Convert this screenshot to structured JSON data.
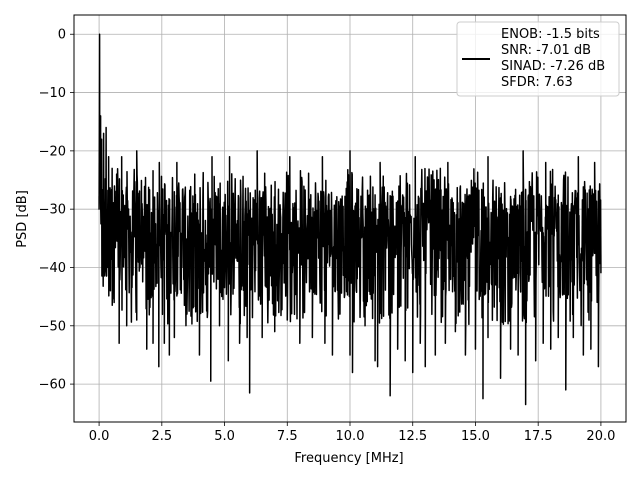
{
  "chart_data": {
    "type": "line",
    "title": "",
    "xlabel": "Frequency [MHz]",
    "ylabel": "PSD [dB]",
    "xlim": [
      -1.0,
      21.0
    ],
    "ylim": [
      -66.5,
      3.3
    ],
    "x_ticks": [
      0.0,
      2.5,
      5.0,
      7.5,
      10.0,
      12.5,
      15.0,
      17.5,
      20.0
    ],
    "x_tick_labels": [
      "0.0",
      "2.5",
      "5.0",
      "7.5",
      "10.0",
      "12.5",
      "15.0",
      "17.5",
      "20.0"
    ],
    "y_ticks": [
      0,
      -10,
      -20,
      -30,
      -40,
      -50,
      -60
    ],
    "y_tick_labels": [
      "0",
      "−10",
      "−20",
      "−30",
      "−40",
      "−50",
      "−60"
    ],
    "grid": true,
    "legend": {
      "placement": "top-right",
      "lines": [
        "ENOB: -1.5 bits",
        "SNR: -7.01 dB",
        "SINAD: -7.26 dB",
        "SFDR: 7.63"
      ]
    },
    "series": [
      {
        "color": "#000000",
        "noise_floor_db": -33,
        "noise_spread_db": [
          -45,
          -23
        ],
        "x_range": [
          0.0,
          20.0
        ],
        "points": [
          [
            0.0,
            -30
          ],
          [
            0.02,
            0.0
          ],
          [
            0.04,
            -20
          ],
          [
            0.06,
            -14
          ],
          [
            0.08,
            -26
          ],
          [
            0.1,
            -18
          ],
          [
            0.14,
            -36
          ],
          [
            0.18,
            -17
          ],
          [
            0.22,
            -34
          ],
          [
            0.28,
            -16
          ],
          [
            0.33,
            -40
          ],
          [
            0.38,
            -21
          ],
          [
            0.45,
            -44
          ],
          [
            0.52,
            -23
          ],
          [
            0.6,
            -46
          ],
          [
            0.7,
            -24
          ],
          [
            0.8,
            -53
          ],
          [
            1.1,
            -50
          ],
          [
            1.5,
            -49
          ],
          [
            1.9,
            -54
          ],
          [
            2.0,
            -48
          ],
          [
            2.15,
            -53
          ],
          [
            2.38,
            -57
          ],
          [
            2.6,
            -53
          ],
          [
            2.8,
            -55
          ],
          [
            3.0,
            -52
          ],
          [
            3.5,
            -48
          ],
          [
            4.0,
            -55
          ],
          [
            4.45,
            -59.5
          ],
          [
            4.8,
            -50
          ],
          [
            5.15,
            -56
          ],
          [
            5.6,
            -53
          ],
          [
            5.9,
            -52
          ],
          [
            6.0,
            -61.5
          ],
          [
            6.5,
            -52
          ],
          [
            7.0,
            -51
          ],
          [
            7.5,
            -49
          ],
          [
            8.0,
            -53
          ],
          [
            8.5,
            -52
          ],
          [
            9.0,
            -53
          ],
          [
            9.3,
            -55
          ],
          [
            9.6,
            -48
          ],
          [
            10.0,
            -55
          ],
          [
            10.1,
            -58
          ],
          [
            10.6,
            -50
          ],
          [
            11.0,
            -56
          ],
          [
            11.1,
            -57
          ],
          [
            11.6,
            -62
          ],
          [
            11.9,
            -54
          ],
          [
            12.2,
            -56
          ],
          [
            12.5,
            -58
          ],
          [
            12.8,
            -53
          ],
          [
            13.0,
            -57
          ],
          [
            13.4,
            -55
          ],
          [
            13.8,
            -53
          ],
          [
            14.2,
            -51
          ],
          [
            14.6,
            -55
          ],
          [
            15.0,
            -54
          ],
          [
            15.3,
            -62.5
          ],
          [
            15.5,
            -52
          ],
          [
            16.0,
            -59
          ],
          [
            16.4,
            -54
          ],
          [
            16.7,
            -55
          ],
          [
            17.0,
            -63.5
          ],
          [
            17.4,
            -56
          ],
          [
            17.7,
            -53
          ],
          [
            18.0,
            -54
          ],
          [
            18.3,
            -52
          ],
          [
            18.6,
            -61
          ],
          [
            18.9,
            -52
          ],
          [
            19.3,
            -55
          ],
          [
            19.6,
            -54
          ],
          [
            19.9,
            -57
          ],
          [
            20.0,
            -41
          ],
          [
            0.9,
            -21
          ],
          [
            1.5,
            -20
          ],
          [
            2.4,
            -22
          ],
          [
            3.1,
            -22
          ],
          [
            4.5,
            -21
          ],
          [
            5.2,
            -21
          ],
          [
            6.3,
            -20
          ],
          [
            7.6,
            -21
          ],
          [
            8.9,
            -21
          ],
          [
            10.0,
            -20
          ],
          [
            11.2,
            -22
          ],
          [
            12.6,
            -21
          ],
          [
            13.9,
            -22
          ],
          [
            15.5,
            -21
          ],
          [
            16.9,
            -20
          ],
          [
            17.8,
            -22
          ],
          [
            19.1,
            -21
          ],
          [
            19.75,
            -22
          ]
        ]
      }
    ]
  }
}
